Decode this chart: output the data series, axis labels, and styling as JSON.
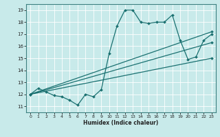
{
  "xlabel": "Humidex (Indice chaleur)",
  "xlim": [
    -0.5,
    23.5
  ],
  "ylim": [
    10.5,
    19.5
  ],
  "xticks": [
    0,
    1,
    2,
    3,
    4,
    5,
    6,
    7,
    8,
    9,
    10,
    11,
    12,
    13,
    14,
    15,
    16,
    17,
    18,
    19,
    20,
    21,
    22,
    23
  ],
  "yticks": [
    11,
    12,
    13,
    14,
    15,
    16,
    17,
    18,
    19
  ],
  "bg_color": "#c8eaea",
  "line_color": "#1a7070",
  "grid_color": "#ffffff",
  "lines": [
    {
      "x": [
        0,
        1,
        2,
        3,
        4,
        5,
        6,
        7,
        8,
        9,
        10,
        11,
        12,
        13,
        14,
        15,
        16,
        17,
        18,
        19,
        20,
        21,
        22,
        23
      ],
      "y": [
        12,
        12.5,
        12.2,
        11.9,
        11.8,
        11.5,
        11.1,
        12.0,
        11.8,
        12.4,
        15.4,
        17.7,
        19.0,
        19.0,
        18.0,
        17.9,
        18.0,
        18.0,
        18.6,
        16.5,
        14.9,
        15.1,
        16.5,
        17.0
      ],
      "has_markers": true
    },
    {
      "x": [
        0,
        23
      ],
      "y": [
        12,
        17.2
      ],
      "has_markers": true
    },
    {
      "x": [
        0,
        23
      ],
      "y": [
        12,
        16.3
      ],
      "has_markers": true
    },
    {
      "x": [
        0,
        23
      ],
      "y": [
        12,
        15.0
      ],
      "has_markers": true
    }
  ]
}
